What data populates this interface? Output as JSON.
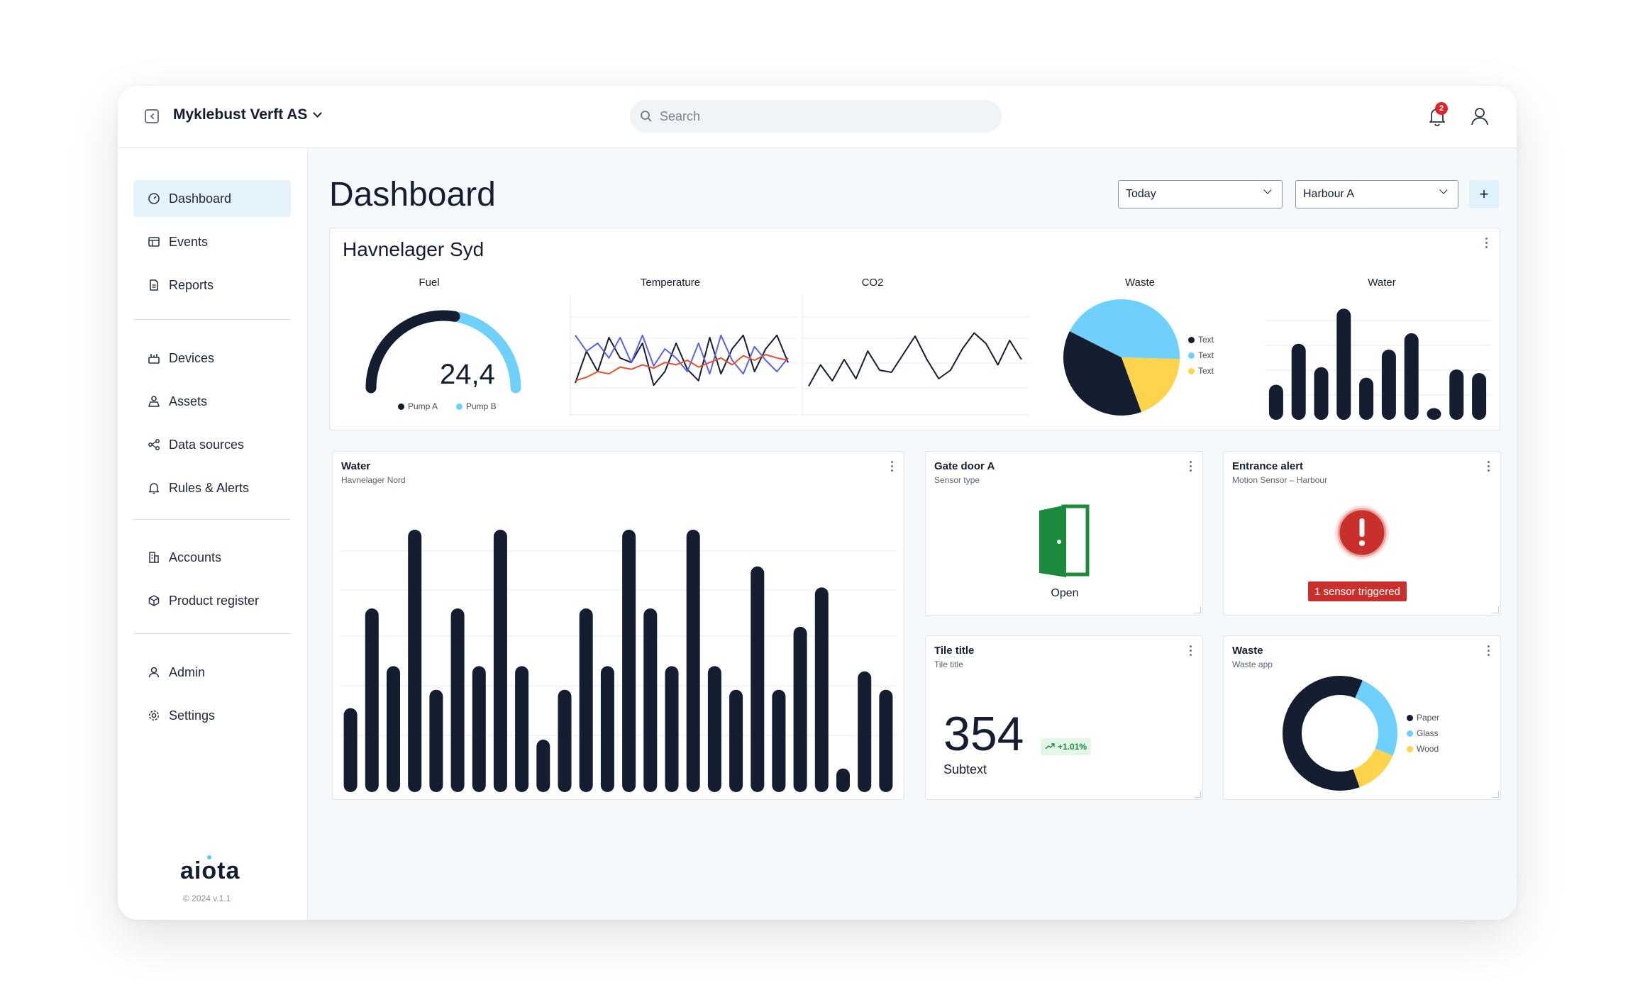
{
  "app": {
    "org_name": "Myklebust Verft AS",
    "notification_count": "2"
  },
  "search": {
    "placeholder": "Search",
    "value": ""
  },
  "sidebar": {
    "groups": [
      [
        {
          "label": "Dashboard",
          "icon": "gauge-icon",
          "active": true
        },
        {
          "label": "Events",
          "icon": "table-icon"
        },
        {
          "label": "Reports",
          "icon": "document-icon"
        }
      ],
      [
        {
          "label": "Devices",
          "icon": "devices-icon"
        },
        {
          "label": "Assets",
          "icon": "assets-icon"
        },
        {
          "label": "Data sources",
          "icon": "data-sources-icon"
        },
        {
          "label": "Rules & Alerts",
          "icon": "bell-icon"
        }
      ],
      [
        {
          "label": "Accounts",
          "icon": "building-icon"
        },
        {
          "label": "Product register",
          "icon": "cube-icon"
        }
      ],
      [
        {
          "label": "Admin",
          "icon": "person-icon"
        },
        {
          "label": "Settings",
          "icon": "gear-icon"
        }
      ]
    ],
    "logo": "aiota",
    "copyright": "© 2024 v.1.1"
  },
  "header": {
    "title": "Dashboard",
    "period_select": "Today",
    "location_select": "Harbour A",
    "add_label": "+"
  },
  "colors": {
    "navy": "#151d30",
    "light_blue": "#6fd0fb",
    "yellow": "#fdd44b",
    "green": "#1b8a3c",
    "red": "#c9302c",
    "purple": "#5b63e0",
    "orange": "#e0522d"
  },
  "overview": {
    "title": "Havnelager Syd",
    "fuel": {
      "label": "Fuel",
      "value": "24,4",
      "pump_a_fraction": 0.55,
      "legend": [
        "Pump A",
        "Pump B"
      ]
    },
    "temperature": {
      "label": "Temperature"
    },
    "co2": {
      "label": "CO2"
    },
    "waste": {
      "label": "Waste",
      "legend": [
        "Text",
        "Text",
        "Text"
      ]
    },
    "water": {
      "label": "Water"
    }
  },
  "water_card": {
    "title": "Water",
    "subtitle": "Havnelager Nord"
  },
  "gate_card": {
    "title": "Gate door A",
    "subtitle": "Sensor type",
    "status": "Open"
  },
  "alert_card": {
    "title": "Entrance alert",
    "subtitle": "Motion Sensor – Harbour",
    "alert": "1 sensor triggered"
  },
  "kpi_card": {
    "title": "Tile title",
    "subtitle": "Tile title",
    "value": "354",
    "trend": "+1.01%",
    "subtext": "Subtext"
  },
  "waste_card": {
    "title": "Waste",
    "subtitle": "Waste app",
    "legend": [
      "Paper",
      "Glass",
      "Wood"
    ]
  },
  "chart_data": [
    {
      "type": "pie",
      "name": "Waste",
      "labels": [
        "Text",
        "Text",
        "Text"
      ],
      "values": [
        38,
        43,
        19
      ],
      "colors": [
        "#151d30",
        "#6fd0fb",
        "#fdd44b"
      ]
    },
    {
      "type": "bar",
      "name": "Water",
      "values": [
        30,
        65,
        45,
        95,
        36,
        60,
        74,
        10,
        43,
        40
      ]
    },
    {
      "type": "line",
      "name": "Temperature",
      "series": [
        {
          "color": "#151d30",
          "values": [
            20,
            48,
            30,
            60,
            42,
            38,
            55,
            18,
            30,
            55,
            32,
            22,
            60,
            28,
            50,
            62,
            30,
            50,
            62,
            38
          ]
        },
        {
          "color": "#5b63e0",
          "values": [
            62,
            48,
            55,
            42,
            60,
            38,
            62,
            35,
            50,
            42,
            30,
            55,
            28,
            62,
            40,
            28,
            52,
            40,
            30,
            42
          ]
        },
        {
          "color": "#e0522d",
          "values": [
            22,
            25,
            30,
            28,
            34,
            32,
            36,
            33,
            38,
            36,
            40,
            34,
            38,
            42,
            36,
            44,
            40,
            45,
            42,
            40
          ]
        }
      ]
    },
    {
      "type": "line",
      "name": "CO2",
      "values": [
        15,
        35,
        20,
        40,
        22,
        48,
        30,
        28,
        45,
        62,
        40,
        22,
        30,
        50,
        65,
        55,
        35,
        58,
        40
      ]
    },
    {
      "type": "bar",
      "name": "Water (Havnelager Nord)",
      "values": [
        32,
        70,
        48,
        100,
        39,
        70,
        48,
        100,
        48,
        20,
        39,
        70,
        48,
        100,
        70,
        48,
        100,
        48,
        39,
        86,
        39,
        63,
        78,
        9,
        46,
        39
      ]
    },
    {
      "type": "pie",
      "name": "Waste app",
      "donut": true,
      "labels": [
        "Paper",
        "Glass",
        "Wood"
      ],
      "values": [
        62,
        25,
        13
      ],
      "colors": [
        "#151d30",
        "#6fd0fb",
        "#fdd44b"
      ]
    }
  ]
}
